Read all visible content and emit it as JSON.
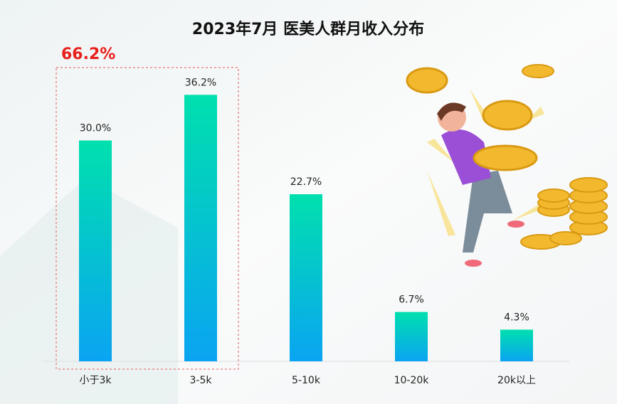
{
  "chart_data": {
    "type": "bar",
    "title": "2023年7月 医美人群月收入分布",
    "categories": [
      "小于3k",
      "3-5k",
      "5-10k",
      "10-20k",
      "20k以上"
    ],
    "values": [
      30.0,
      36.2,
      22.7,
      6.7,
      4.3
    ],
    "value_labels": [
      "30.0%",
      "36.2%",
      "22.7%",
      "6.7%",
      "4.3%"
    ],
    "annotation": "66.2%",
    "gradient": [
      "#00e0ae",
      "#0aa4f2"
    ],
    "ylim": [
      0,
      40
    ]
  }
}
